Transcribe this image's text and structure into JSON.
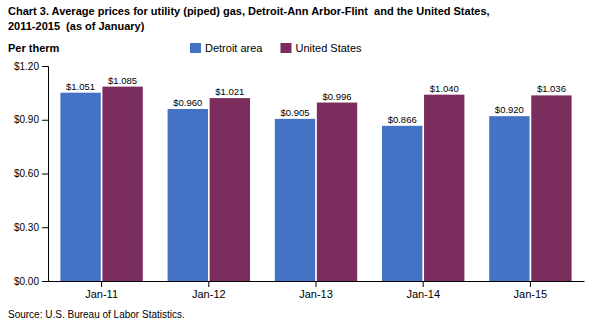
{
  "chart_data": {
    "type": "bar",
    "title": "Chart 3. Average prices for utility (piped) gas, Detroit-Ann Arbor-Flint  and the United States,",
    "subtitle": "2011-2015  (as of January)",
    "y_label": "Per therm",
    "annotations": [
      "Source: U.S. Bureau of Labor Statistics."
    ],
    "categories": [
      "Jan-11",
      "Jan-12",
      "Jan-13",
      "Jan-14",
      "Jan-15"
    ],
    "series": [
      {
        "name": "Detroit area",
        "color": "#4472C4",
        "values": [
          1.051,
          0.96,
          0.905,
          0.866,
          0.92
        ],
        "value_labels": [
          "$1.051",
          "$0.960",
          "$0.905",
          "$0.866",
          "$0.920"
        ]
      },
      {
        "name": "United States",
        "color": "#7B2D5E",
        "values": [
          1.085,
          1.021,
          0.996,
          1.04,
          1.036
        ],
        "value_labels": [
          "$1.085",
          "$1.021",
          "$0.996",
          "$1.040",
          "$1.036"
        ]
      }
    ],
    "ylim": [
      0.0,
      1.2
    ],
    "yticks": [
      {
        "value": 0.0,
        "label": "$0.00"
      },
      {
        "value": 0.3,
        "label": "$0.30"
      },
      {
        "value": 0.6,
        "label": "$0.60"
      },
      {
        "value": 0.9,
        "label": "$0.90"
      },
      {
        "value": 1.2,
        "label": "$1.20"
      }
    ],
    "data_labels": true,
    "legend": "top",
    "grid": false
  }
}
